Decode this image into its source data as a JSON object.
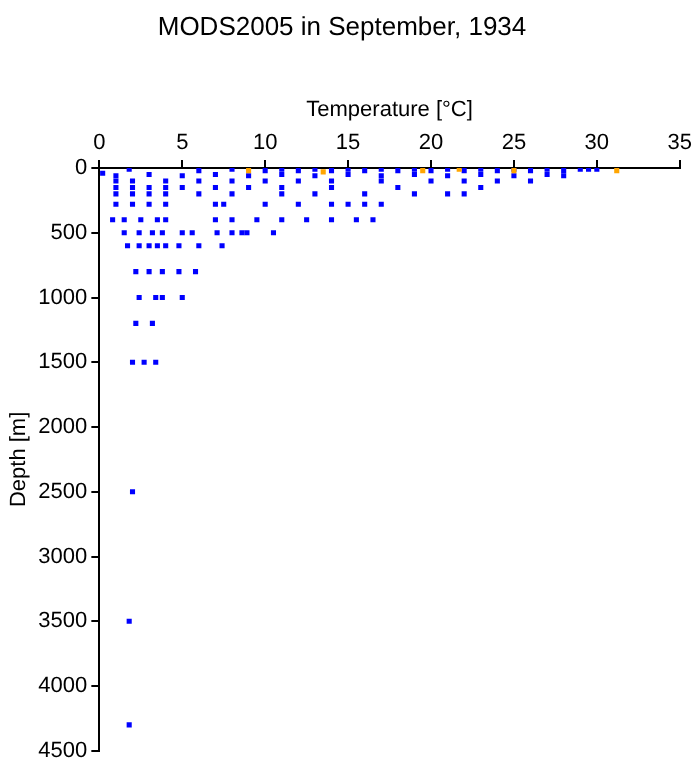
{
  "chart_data": {
    "type": "scatter",
    "title": "MODS2005 in September, 1934",
    "xlabel": "Temperature [°C]",
    "ylabel": "Depth [m]",
    "xlim": [
      0,
      35
    ],
    "xticks": [
      0,
      5,
      10,
      15,
      20,
      25,
      30,
      35
    ],
    "ylim": [
      4500,
      0
    ],
    "yticks": [
      0,
      500,
      1000,
      1500,
      2000,
      2500,
      3000,
      3500,
      4000,
      4500
    ],
    "grid": false,
    "legend": false,
    "marker": "square",
    "series": [
      {
        "color": "#0000ff",
        "x": [
          0.2,
          1.8,
          6,
          8,
          10,
          11,
          12,
          13,
          14,
          15,
          16,
          17,
          18,
          19,
          20,
          21,
          22,
          23,
          24,
          25,
          26,
          27,
          28,
          29,
          29.5,
          30,
          1,
          3,
          5,
          7,
          9,
          11,
          13,
          15,
          17,
          19,
          21,
          23,
          25,
          27,
          28,
          1,
          2,
          4,
          6,
          8,
          10,
          12,
          14,
          17,
          20,
          22,
          24,
          26,
          1,
          2,
          3,
          4,
          5,
          7,
          9,
          11,
          14,
          18,
          23,
          1,
          2,
          3,
          4,
          6,
          8,
          11,
          13,
          16,
          19,
          21,
          22,
          1,
          2,
          3,
          4,
          7,
          7.5,
          10,
          12,
          14,
          15,
          16,
          17,
          0.8,
          1.5,
          2.5,
          3.5,
          4,
          7,
          8,
          9.5,
          11,
          12.5,
          14,
          15.5,
          16.5,
          1.5,
          2.4,
          3.2,
          3.8,
          5,
          5.6,
          7.1,
          8,
          8.6,
          8.9,
          10.5,
          1.7,
          2.4,
          3,
          3.5,
          4,
          4.8,
          6,
          7.4,
          2.2,
          3,
          3.8,
          4.8,
          5.8,
          2.4,
          3.4,
          3.8,
          5,
          2.2,
          3.2,
          2,
          2.7,
          3.4,
          2,
          1.8,
          1.8
        ],
        "values": [
          40,
          10,
          20,
          10,
          20,
          10,
          20,
          10,
          20,
          10,
          20,
          10,
          20,
          10,
          20,
          10,
          20,
          10,
          20,
          10,
          20,
          10,
          20,
          10,
          10,
          10,
          60,
          50,
          60,
          50,
          60,
          50,
          60,
          50,
          60,
          50,
          60,
          50,
          60,
          50,
          60,
          100,
          100,
          100,
          100,
          100,
          100,
          100,
          100,
          100,
          100,
          100,
          100,
          100,
          150,
          150,
          150,
          150,
          150,
          150,
          150,
          150,
          150,
          150,
          150,
          200,
          200,
          200,
          200,
          200,
          200,
          200,
          200,
          200,
          200,
          200,
          200,
          280,
          280,
          280,
          280,
          280,
          280,
          280,
          280,
          280,
          280,
          280,
          280,
          400,
          400,
          400,
          400,
          400,
          400,
          400,
          400,
          400,
          400,
          400,
          400,
          400,
          500,
          500,
          500,
          500,
          500,
          500,
          500,
          500,
          500,
          500,
          500,
          600,
          600,
          600,
          600,
          600,
          600,
          600,
          600,
          800,
          800,
          800,
          800,
          800,
          1000,
          1000,
          1000,
          1000,
          1200,
          1200,
          1500,
          1500,
          1500,
          2500,
          3500,
          4300
        ]
      },
      {
        "color": "#ffa500",
        "x": [
          9,
          13.5,
          19.5,
          21.7,
          25,
          31.2
        ],
        "values": [
          20,
          30,
          20,
          10,
          20,
          20
        ]
      }
    ]
  }
}
